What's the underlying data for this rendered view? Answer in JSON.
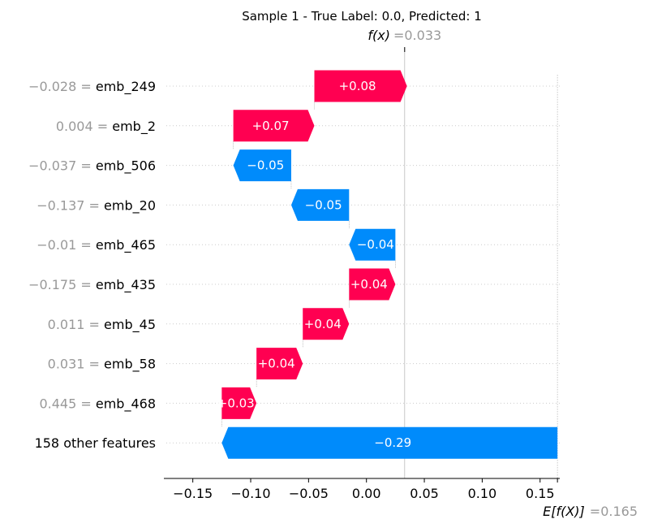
{
  "chart_data": {
    "type": "waterfall",
    "title": "Sample 1 - True Label: 0.0, Predicted: 1",
    "fx": {
      "label": "f(x)",
      "eq": "=",
      "value": "0.033",
      "numeric": 0.033
    },
    "base": {
      "label": "E[f(X)]",
      "eq": "=",
      "value": "0.165",
      "numeric": 0.165
    },
    "colors": {
      "positive": "#ff0051",
      "negative": "#008bfb",
      "value_text": "#999999"
    },
    "features": [
      {
        "value": "−0.028",
        "name": "emb_249",
        "contribution": 0.08,
        "label": "+0.08"
      },
      {
        "value": "0.004",
        "name": "emb_2",
        "contribution": 0.07,
        "label": "+0.07"
      },
      {
        "value": "−0.037",
        "name": "emb_506",
        "contribution": -0.05,
        "label": "−0.05"
      },
      {
        "value": "−0.137",
        "name": "emb_20",
        "contribution": -0.05,
        "label": "−0.05"
      },
      {
        "value": "−0.01",
        "name": "emb_465",
        "contribution": -0.04,
        "label": "−0.04"
      },
      {
        "value": "−0.175",
        "name": "emb_435",
        "contribution": 0.04,
        "label": "+0.04"
      },
      {
        "value": "0.011",
        "name": "emb_45",
        "contribution": 0.04,
        "label": "+0.04"
      },
      {
        "value": "0.031",
        "name": "emb_58",
        "contribution": 0.04,
        "label": "+0.04"
      },
      {
        "value": "0.445",
        "name": "emb_468",
        "contribution": 0.03,
        "label": "+0.03"
      },
      {
        "value": "",
        "name": "158 other features",
        "contribution": -0.29,
        "label": "−0.29"
      }
    ],
    "x_ticks": [
      {
        "v": -0.15,
        "label": "−0.15"
      },
      {
        "v": -0.1,
        "label": "−0.10"
      },
      {
        "v": -0.05,
        "label": "−0.05"
      },
      {
        "v": 0.0,
        "label": "0.00"
      },
      {
        "v": 0.05,
        "label": "0.05"
      },
      {
        "v": 0.1,
        "label": "0.10"
      },
      {
        "v": 0.15,
        "label": "0.15"
      }
    ],
    "xlim": [
      -0.175,
      0.167
    ]
  }
}
